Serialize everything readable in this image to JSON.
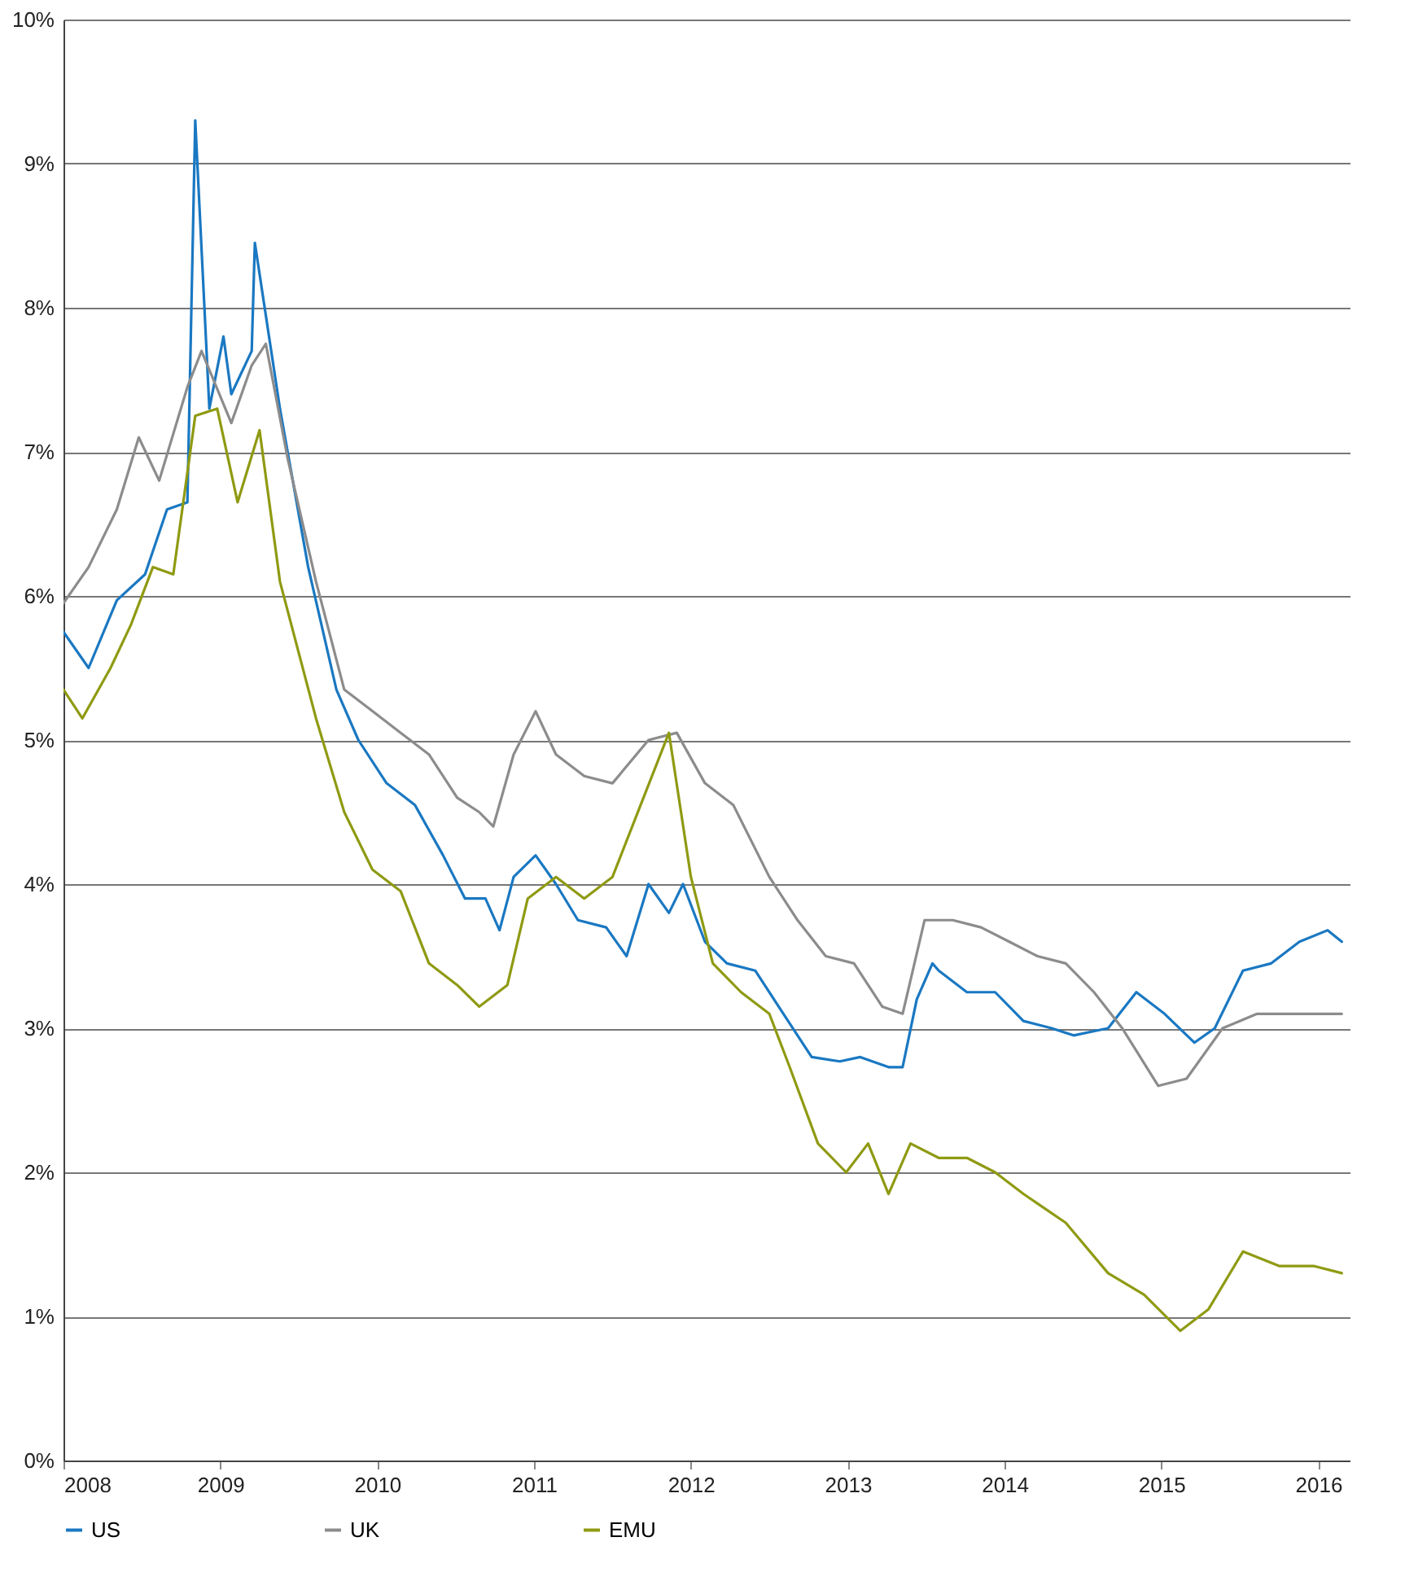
{
  "chart_data": {
    "type": "line",
    "xlim": [
      2008,
      2016.2
    ],
    "xticks": [
      2008,
      2009,
      2010,
      2011,
      2012,
      2013,
      2014,
      2015,
      2016
    ],
    "ylim": [
      0,
      10
    ],
    "yticks": [
      {
        "value": 0,
        "label": "0%"
      },
      {
        "value": 1,
        "label": "1%"
      },
      {
        "value": 2,
        "label": "2%"
      },
      {
        "value": 3,
        "label": "3%"
      },
      {
        "value": 4,
        "label": "4%"
      },
      {
        "value": 5,
        "label": "5%"
      },
      {
        "value": 6,
        "label": "6%"
      },
      {
        "value": 7,
        "label": "7%"
      },
      {
        "value": 8,
        "label": "8%"
      },
      {
        "value": 9,
        "label": "9%"
      },
      {
        "value": 10,
        "label": "10%"
      }
    ],
    "grid": "y",
    "legend": "bottom",
    "line_style": "solid",
    "series": [
      {
        "name": "US",
        "color": "#1a78c2",
        "x": [
          2008,
          2008.16,
          2008.34,
          2008.52,
          2008.66,
          2008.79,
          2008.84,
          2008.93,
          2009.02,
          2009.07,
          2009.2,
          2009.22,
          2009.38,
          2009.56,
          2009.74,
          2009.88,
          2010.06,
          2010.24,
          2010.42,
          2010.56,
          2010.69,
          2010.78,
          2010.87,
          2011.01,
          2011.14,
          2011.28,
          2011.46,
          2011.59,
          2011.73,
          2011.86,
          2011.95,
          2012.09,
          2012.23,
          2012.41,
          2012.59,
          2012.77,
          2012.95,
          2013.08,
          2013.26,
          2013.35,
          2013.44,
          2013.54,
          2013.58,
          2013.76,
          2013.94,
          2014.12,
          2014.3,
          2014.44,
          2014.66,
          2014.84,
          2015.02,
          2015.21,
          2015.34,
          2015.52,
          2015.7,
          2015.88,
          2016.06,
          2016.15
        ],
        "values": [
          5.75,
          5.5,
          5.97,
          6.15,
          6.6,
          6.65,
          9.3,
          7.3,
          7.8,
          7.4,
          7.7,
          8.45,
          7.3,
          6.2,
          5.35,
          5.0,
          4.7,
          4.55,
          4.2,
          3.9,
          3.9,
          3.68,
          4.05,
          4.2,
          4.0,
          3.75,
          3.7,
          3.5,
          4.0,
          3.8,
          4.0,
          3.6,
          3.45,
          3.4,
          3.1,
          2.8,
          2.77,
          2.8,
          2.73,
          2.73,
          3.2,
          3.45,
          3.4,
          3.25,
          3.25,
          3.05,
          3.0,
          2.95,
          3.0,
          3.25,
          3.1,
          2.9,
          3.0,
          3.4,
          3.45,
          3.6,
          3.68,
          3.6
        ]
      },
      {
        "name": "UK",
        "color": "#8c8c8c",
        "x": [
          2008,
          2008.16,
          2008.34,
          2008.48,
          2008.61,
          2008.79,
          2008.88,
          2009.07,
          2009.2,
          2009.29,
          2009.43,
          2009.61,
          2009.79,
          2009.97,
          2010.15,
          2010.33,
          2010.51,
          2010.65,
          2010.74,
          2010.87,
          2011.01,
          2011.14,
          2011.32,
          2011.5,
          2011.73,
          2011.91,
          2012.09,
          2012.27,
          2012.5,
          2012.68,
          2012.86,
          2013.04,
          2013.22,
          2013.35,
          2013.49,
          2013.67,
          2013.85,
          2014.03,
          2014.21,
          2014.39,
          2014.57,
          2014.75,
          2014.98,
          2015.16,
          2015.39,
          2015.61,
          2015.84,
          2016.15
        ],
        "values": [
          5.95,
          6.2,
          6.6,
          7.1,
          6.8,
          7.45,
          7.7,
          7.2,
          7.6,
          7.75,
          6.95,
          6.1,
          5.35,
          5.2,
          5.05,
          4.9,
          4.6,
          4.5,
          4.4,
          4.9,
          5.2,
          4.9,
          4.75,
          4.7,
          5.0,
          5.05,
          4.7,
          4.55,
          4.05,
          3.75,
          3.5,
          3.45,
          3.15,
          3.1,
          3.75,
          3.75,
          3.7,
          3.6,
          3.5,
          3.45,
          3.25,
          3.0,
          2.6,
          2.65,
          3.0,
          3.1,
          3.1,
          3.1
        ]
      },
      {
        "name": "EMU",
        "color": "#8f9a12",
        "x": [
          2008,
          2008.12,
          2008.3,
          2008.43,
          2008.57,
          2008.7,
          2008.84,
          2008.98,
          2009.11,
          2009.25,
          2009.38,
          2009.61,
          2009.79,
          2009.97,
          2010.15,
          2010.33,
          2010.51,
          2010.65,
          2010.83,
          2010.96,
          2011.14,
          2011.32,
          2011.5,
          2011.68,
          2011.86,
          2012,
          2012.14,
          2012.32,
          2012.5,
          2012.63,
          2012.81,
          2012.99,
          2013.13,
          2013.26,
          2013.4,
          2013.58,
          2013.76,
          2013.94,
          2014.12,
          2014.39,
          2014.66,
          2014.89,
          2015.12,
          2015.3,
          2015.52,
          2015.75,
          2015.97,
          2016.15
        ],
        "values": [
          5.35,
          5.15,
          5.5,
          5.8,
          6.2,
          6.15,
          7.25,
          7.3,
          6.65,
          7.15,
          6.1,
          5.15,
          4.5,
          4.1,
          3.95,
          3.45,
          3.3,
          3.15,
          3.3,
          3.9,
          4.05,
          3.9,
          4.05,
          4.55,
          5.05,
          4.05,
          3.45,
          3.25,
          3.1,
          2.73,
          2.2,
          2.0,
          2.2,
          1.85,
          2.2,
          2.1,
          2.1,
          2.0,
          1.85,
          1.65,
          1.3,
          1.15,
          0.9,
          1.05,
          1.45,
          1.35,
          1.35,
          1.3
        ]
      }
    ]
  }
}
